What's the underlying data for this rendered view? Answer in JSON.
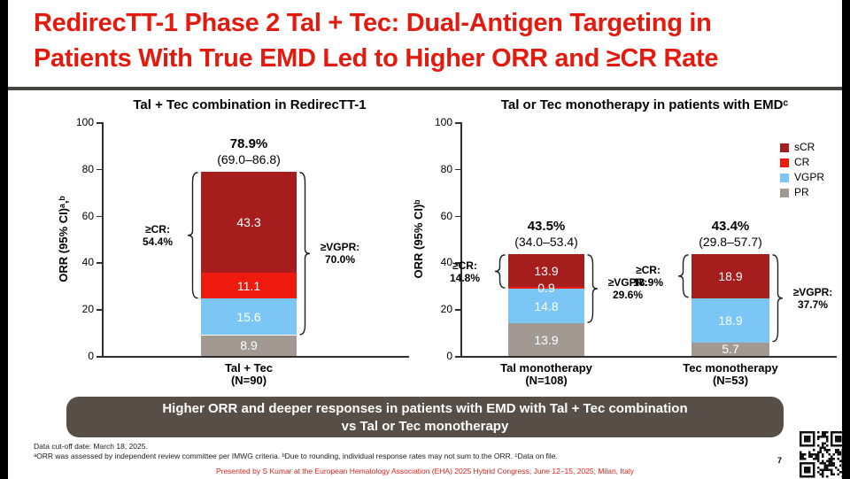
{
  "slide": {
    "title_line1": "RedirecTT-1 Phase 2 Tal + Tec: Dual-Antigen Targeting in",
    "title_line2": "Patients With True EMD Led to Higher ORR and ≥CR Rate",
    "banner_line1": "Higher ORR and deeper responses in patients with EMD with Tal + Tec combination",
    "banner_line2": "vs Tal or Tec monotherapy",
    "footer_line1": "Data cut-off date: March 18, 2025.",
    "footer_line2": "ᵃORR was assessed by independent review committee per IMWG criteria. ᵇDue to rounding, individual response rates may not sum to the ORR. ᶜData on file.",
    "presented_line": "Presented by S Kumar at the European Hematology Association (EHA) 2025 Hybrid Congress; June 12–15, 2025; Milan, Italy",
    "page_number": "7"
  },
  "colors": {
    "title_red": "#e41a0f",
    "presented_red": "#d9251a",
    "banner_bg": "#564e47",
    "separator": "#454543",
    "axis": "#2e2e2e",
    "series": {
      "sCR": "#a61d1d",
      "CR": "#ee1a0e",
      "VGPR": "#7cc6f5",
      "PR": "#a29a92"
    }
  },
  "legend": {
    "position": "top-right",
    "entries": [
      {
        "label": "sCR",
        "color": "#a61d1d"
      },
      {
        "label": "CR",
        "color": "#ee1a0e"
      },
      {
        "label": "VGPR",
        "color": "#7cc6f5"
      },
      {
        "label": "PR",
        "color": "#a29a92"
      }
    ]
  },
  "chart_data": [
    {
      "type": "bar",
      "stacked": true,
      "title": "Tal + Tec combination in RedirecTT-1",
      "ylabel": "ORR (95% CI)ᵃ,ᵇ",
      "ylim": [
        0,
        100
      ],
      "yticks": [
        0,
        20,
        40,
        60,
        80,
        100
      ],
      "grid": false,
      "bars": [
        {
          "category": "Tal + Tec",
          "n": "(N=90)",
          "total": "78.9%",
          "ci": "(69.0–86.8)",
          "segments": [
            {
              "name": "PR",
              "value": 8.9
            },
            {
              "name": "VGPR",
              "value": 15.6
            },
            {
              "name": "CR",
              "value": 11.1
            },
            {
              "name": "sCR",
              "value": 43.3
            }
          ],
          "annotations": [
            {
              "side": "left",
              "line1": "≥CR:",
              "line2": "54.4%",
              "from": 24.5,
              "to": 78.9
            },
            {
              "side": "right",
              "line1": "≥VGPR:",
              "line2": "70.0%",
              "from": 8.9,
              "to": 78.9
            }
          ]
        }
      ]
    },
    {
      "type": "bar",
      "stacked": true,
      "title": "Tal or Tec monotherapy in patients with EMDᶜ",
      "ylabel": "ORR (95% CI)ᵇ",
      "ylim": [
        0,
        100
      ],
      "yticks": [
        0,
        20,
        40,
        60,
        80,
        100
      ],
      "grid": false,
      "bars": [
        {
          "category": "Tal monotherapy",
          "n": "(N=108)",
          "total": "43.5%",
          "ci": "(34.0–53.4)",
          "segments": [
            {
              "name": "PR",
              "value": 13.9
            },
            {
              "name": "VGPR",
              "value": 14.8
            },
            {
              "name": "CR",
              "value": 0.9
            },
            {
              "name": "sCR",
              "value": 13.9
            }
          ],
          "annotations": [
            {
              "side": "left",
              "line1": "≥CR:",
              "line2": "14.8%",
              "from": 28.7,
              "to": 43.5
            },
            {
              "side": "right",
              "line1": "≥VGPR:",
              "line2": "29.6%",
              "from": 13.9,
              "to": 43.5
            }
          ]
        },
        {
          "category": "Tec monotherapy",
          "n": "(N=53)",
          "total": "43.4%",
          "ci": "(29.8–57.7)",
          "segments": [
            {
              "name": "PR",
              "value": 5.7
            },
            {
              "name": "VGPR",
              "value": 18.9
            },
            {
              "name": "sCR",
              "value": 18.9
            }
          ],
          "annotations": [
            {
              "side": "left",
              "line1": "≥CR:",
              "line2": "18.9%",
              "from": 24.6,
              "to": 43.4
            },
            {
              "side": "right",
              "line1": "≥VGPR:",
              "line2": "37.7%",
              "from": 5.7,
              "to": 43.4
            }
          ]
        }
      ]
    }
  ]
}
